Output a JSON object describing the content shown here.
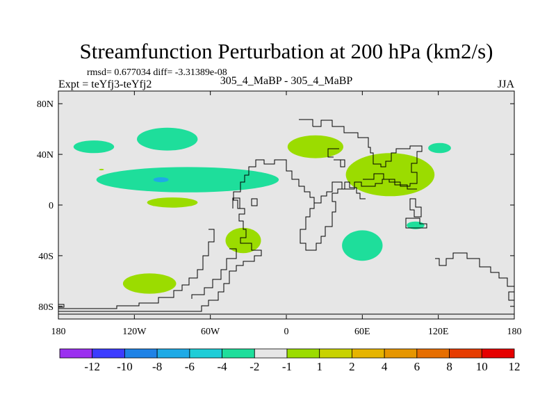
{
  "chart_data": {
    "type": "heatmap",
    "title": "Streamfunction Perturbation at 200 hPa (km2/s)",
    "stats_text": "rmsd= 0.677034 diff= -3.31389e-08",
    "experiment_text": "Expt = teYfj3-teYfj2",
    "run_text": "305_4_MaBP - 305_4_MaBP",
    "season": "JJA",
    "x_axis": {
      "range": [
        -180,
        180
      ],
      "tick_values": [
        -180,
        -120,
        -60,
        0,
        60,
        120,
        180
      ],
      "tick_labels": [
        "180",
        "120W",
        "60W",
        "0",
        "60E",
        "120E",
        "180"
      ]
    },
    "y_axis": {
      "range": [
        -90,
        90
      ],
      "tick_values": [
        80,
        40,
        0,
        -40,
        -80
      ],
      "tick_labels": [
        "80N",
        "40N",
        "0",
        "40S",
        "80S"
      ]
    },
    "colorbar": {
      "colors": [
        "#9b30f0",
        "#3c3cff",
        "#1e82e6",
        "#1eaae6",
        "#1ecdd7",
        "#1ede9b",
        "#e6e6e6",
        "#9bdc00",
        "#c8d200",
        "#e6b400",
        "#e69600",
        "#e66e00",
        "#e63c00",
        "#e60000"
      ],
      "tick_labels": [
        "-12",
        "-10",
        "-8",
        "-6",
        "-4",
        "-2",
        "-1",
        "1",
        "2",
        "4",
        "6",
        "8",
        "10",
        "12"
      ]
    },
    "anomalies": [
      {
        "name": "anomaly-negative-north-pacific",
        "value": -2,
        "lon": -152,
        "lat": 46,
        "rlon": 16,
        "rlat": 5
      },
      {
        "name": "anomaly-negative-alaska",
        "value": -2,
        "lon": -94,
        "lat": 52,
        "rlon": 24,
        "rlat": 9
      },
      {
        "name": "anomaly-negative-tropical-pacific-band",
        "value": -2,
        "lon": -78,
        "lat": 20,
        "rlon": 72,
        "rlat": 10
      },
      {
        "name": "anomaly-negative-tropical-core",
        "value": -4,
        "lon": -99,
        "lat": 20,
        "rlon": 6,
        "rlat": 2
      },
      {
        "name": "anomaly-negative-east-asia",
        "value": -2,
        "lon": 121,
        "lat": 45,
        "rlon": 9,
        "rlat": 4
      },
      {
        "name": "anomaly-negative-indian-ocean",
        "value": -2,
        "lon": 60,
        "lat": -32,
        "rlon": 16,
        "rlat": 12
      },
      {
        "name": "anomaly-negative-indonesia",
        "value": -2,
        "lon": 102,
        "lat": -16,
        "rlon": 7,
        "rlat": 3
      },
      {
        "name": "anomaly-positive-east-pacific",
        "value": 2,
        "lon": -90,
        "lat": 2,
        "rlon": 20,
        "rlat": 4
      },
      {
        "name": "anomaly-positive-south-america",
        "value": 2,
        "lon": -34,
        "lat": -28,
        "rlon": 14,
        "rlat": 10
      },
      {
        "name": "anomaly-positive-south-pacific",
        "value": 2,
        "lon": -108,
        "lat": -62,
        "rlon": 21,
        "rlat": 8
      },
      {
        "name": "anomaly-positive-europe",
        "value": 2,
        "lon": 23,
        "lat": 46,
        "rlon": 22,
        "rlat": 9
      },
      {
        "name": "anomaly-positive-central-asia",
        "value": 2,
        "lon": 82,
        "lat": 24,
        "rlon": 35,
        "rlat": 17
      },
      {
        "name": "anomaly-positive-tiny-pacific",
        "value": 2,
        "lon": -146,
        "lat": 28,
        "rlon": 2,
        "rlat": 0.6
      }
    ]
  }
}
